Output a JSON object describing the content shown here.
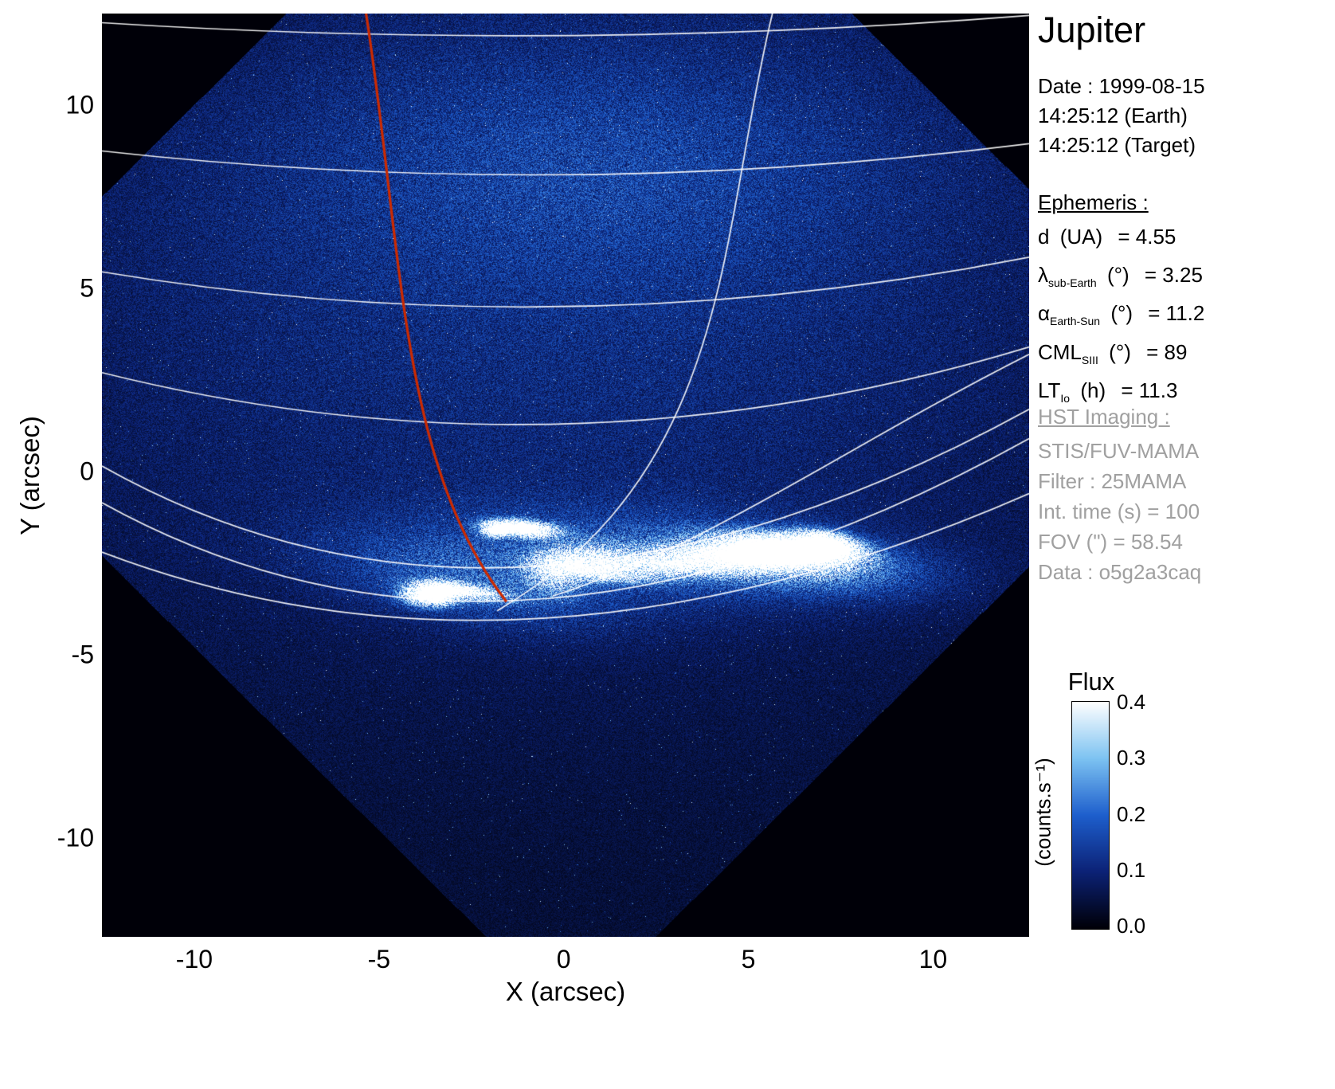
{
  "panel": {
    "title": "Jupiter",
    "date": {
      "line1": "Date : 1999-08-15",
      "line2": "14:25:12 (Earth)",
      "line3": "14:25:12 (Target)"
    },
    "ephemeris": {
      "header": "Ephemeris :",
      "rows": [
        {
          "symbol": "d",
          "sub": "",
          "unit": "(UA)",
          "value": "= 4.55"
        },
        {
          "symbol": "λ",
          "sub": "sub-Earth",
          "unit": "(°)",
          "value": "= 3.25"
        },
        {
          "symbol": "α",
          "sub": "Earth-Sun",
          "unit": "(°)",
          "value": "= 11.2"
        },
        {
          "symbol": "CML",
          "sub": "SIII",
          "unit": "(°)",
          "value": "= 89"
        },
        {
          "symbol": "LT",
          "sub": "Io",
          "unit": "(h)",
          "value": "= 11.3"
        }
      ]
    },
    "hst": {
      "header": "HST Imaging :",
      "lines": [
        "STIS/FUV-MAMA",
        "Filter : 25MAMA",
        "Int. time (s) = 100",
        "FOV (\") = 58.54",
        "Data : o5g2a3caq"
      ]
    },
    "colorbar": {
      "title": "Flux",
      "units": "(counts.s⁻¹)",
      "ticks": [
        "0.4",
        "0.3",
        "0.2",
        "0.1",
        "0.0"
      ]
    }
  },
  "chart_data": {
    "type": "heatmap",
    "title": "Jupiter",
    "xlabel": "X (arcsec)",
    "ylabel": "Y (arcsec)",
    "xlim": [
      -12.5,
      12.6
    ],
    "ylim": [
      -12.7,
      12.5
    ],
    "xticks": [
      -10,
      -5,
      0,
      5,
      10
    ],
    "yticks": [
      -10,
      -5,
      0,
      5,
      10
    ],
    "flux_min": 0.0,
    "flux_max": 0.4,
    "colorbar_ticks": [
      0.4,
      0.3,
      0.2,
      0.1,
      0.0
    ],
    "colors": {
      "grid_lines": "#ffffff",
      "io_footprint": "#cc2a00",
      "background": "#000000"
    },
    "detector_fov_polygon": [
      [
        0.15,
        20.15
      ],
      [
        17.75,
        2.55
      ],
      [
        0.2,
        -15.0
      ],
      [
        -17.4,
        2.6
      ]
    ],
    "background_glows": [
      [
        0.0,
        7.0,
        11.0,
        7.0,
        0,
        0.05
      ],
      [
        1.0,
        8.5,
        6.0,
        2.3,
        0,
        0.05
      ],
      [
        0.0,
        2.0,
        12.0,
        6.5,
        0,
        0.03
      ],
      [
        1.5,
        -2.3,
        4.5,
        0.9,
        -3,
        0.1
      ],
      [
        -2.5,
        -3.2,
        2.5,
        0.7,
        -10,
        0.08
      ],
      [
        6.3,
        -2.5,
        2.2,
        0.5,
        -5,
        0.18
      ]
    ],
    "auroral_features": [
      [
        -1.15,
        -1.55,
        0.55,
        0.13,
        -5,
        0.85
      ],
      [
        -1.85,
        -1.62,
        0.22,
        0.11,
        0,
        0.5
      ],
      [
        5.85,
        -2.15,
        1.05,
        0.24,
        -5,
        1.0
      ],
      [
        7.1,
        -2.0,
        0.55,
        0.2,
        -10,
        0.8
      ],
      [
        4.4,
        -2.35,
        1.3,
        0.18,
        -4,
        0.45
      ],
      [
        2.6,
        -2.55,
        1.4,
        0.16,
        -4,
        0.4
      ],
      [
        1.0,
        -2.75,
        1.0,
        0.14,
        -6,
        0.35
      ],
      [
        -3.55,
        -3.35,
        0.45,
        0.18,
        0,
        0.9
      ],
      [
        -2.7,
        -3.25,
        0.7,
        0.12,
        -8,
        0.45
      ],
      [
        -0.2,
        -2.75,
        0.5,
        0.35,
        0,
        0.25
      ],
      [
        0.6,
        -2.4,
        0.7,
        0.3,
        0,
        0.2
      ]
    ],
    "grid_curves": [
      {
        "kind": "quad",
        "p": [
          [
            -12.5,
            12.25
          ],
          [
            0,
            11.45
          ],
          [
            12.6,
            12.45
          ]
        ]
      },
      {
        "kind": "quad",
        "p": [
          [
            -12.5,
            8.75
          ],
          [
            0,
            7.35
          ],
          [
            12.6,
            8.95
          ]
        ]
      },
      {
        "kind": "quad",
        "p": [
          [
            -12.5,
            5.45
          ],
          [
            0,
            3.35
          ],
          [
            12.6,
            5.85
          ]
        ]
      },
      {
        "kind": "quad",
        "p": [
          [
            -12.5,
            2.7
          ],
          [
            0,
            -0.45
          ],
          [
            12.6,
            3.4
          ]
        ]
      },
      {
        "kind": "quad",
        "p": [
          [
            -12.5,
            0.15
          ],
          [
            -1.5,
            -6.1
          ],
          [
            12.6,
            1.7
          ]
        ]
      },
      {
        "kind": "quad",
        "p": [
          [
            -12.5,
            -0.85
          ],
          [
            -1.5,
            -7.0
          ],
          [
            12.6,
            0.9
          ]
        ]
      },
      {
        "kind": "quad",
        "p": [
          [
            -12.5,
            -2.2
          ],
          [
            -1.0,
            -6.6
          ],
          [
            12.6,
            -0.6
          ]
        ]
      },
      {
        "kind": "cubic",
        "p": [
          [
            5.65,
            12.5
          ],
          [
            4.2,
            6.5
          ],
          [
            4.6,
            0.0
          ],
          [
            -1.8,
            -3.8
          ]
        ]
      },
      {
        "kind": "cubic",
        "p": [
          [
            12.6,
            3.2
          ],
          [
            7.5,
            0.6
          ],
          [
            4.0,
            -2.0
          ],
          [
            -0.3,
            -3.4
          ]
        ]
      }
    ],
    "io_footprint_curve": {
      "kind": "cubic",
      "p": [
        [
          -5.35,
          12.5
        ],
        [
          -4.35,
          6.0
        ],
        [
          -4.45,
          0.2
        ],
        [
          -1.55,
          -3.55
        ]
      ]
    },
    "noise_seed": 20
  }
}
